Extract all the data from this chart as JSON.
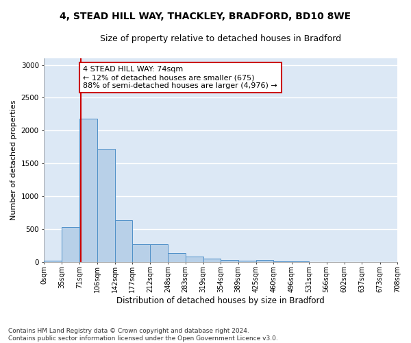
{
  "title1": "4, STEAD HILL WAY, THACKLEY, BRADFORD, BD10 8WE",
  "title2": "Size of property relative to detached houses in Bradford",
  "xlabel": "Distribution of detached houses by size in Bradford",
  "ylabel": "Number of detached properties",
  "bar_edges": [
    0,
    35,
    71,
    106,
    142,
    177,
    212,
    248,
    283,
    319,
    354,
    389,
    425,
    460,
    496,
    531,
    566,
    602,
    637,
    673,
    708
  ],
  "bar_heights": [
    20,
    530,
    2185,
    1720,
    635,
    270,
    270,
    135,
    80,
    50,
    30,
    20,
    25,
    5,
    8,
    0,
    0,
    0,
    0,
    0
  ],
  "bar_color": "#b8d0e8",
  "bar_edge_color": "#5090c8",
  "property_size": 74,
  "vline_color": "#cc0000",
  "annotation_text": "4 STEAD HILL WAY: 74sqm\n← 12% of detached houses are smaller (675)\n88% of semi-detached houses are larger (4,976) →",
  "annotation_box_color": "#ffffff",
  "annotation_box_edge": "#cc0000",
  "ylim": [
    0,
    3100
  ],
  "tick_labels": [
    "0sqm",
    "35sqm",
    "71sqm",
    "106sqm",
    "142sqm",
    "177sqm",
    "212sqm",
    "248sqm",
    "283sqm",
    "319sqm",
    "354sqm",
    "389sqm",
    "425sqm",
    "460sqm",
    "496sqm",
    "531sqm",
    "566sqm",
    "602sqm",
    "637sqm",
    "673sqm",
    "708sqm"
  ],
  "footer_text": "Contains HM Land Registry data © Crown copyright and database right 2024.\nContains public sector information licensed under the Open Government Licence v3.0.",
  "bg_color": "#ffffff",
  "plot_bg_color": "#dce8f5",
  "grid_color": "#ffffff",
  "title1_fontsize": 10,
  "title2_fontsize": 9,
  "xlabel_fontsize": 8.5,
  "ylabel_fontsize": 8,
  "tick_fontsize": 7,
  "annotation_fontsize": 8,
  "footer_fontsize": 6.5,
  "yticks": [
    0,
    500,
    1000,
    1500,
    2000,
    2500,
    3000
  ]
}
